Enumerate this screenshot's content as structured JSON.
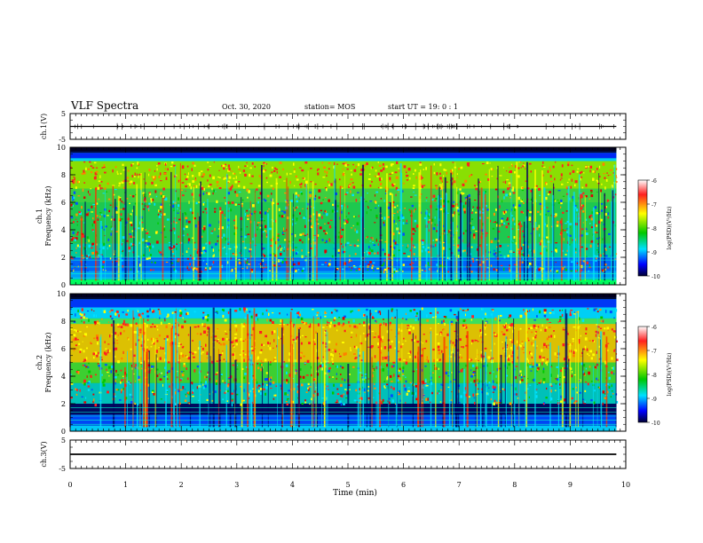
{
  "header": {
    "title": "VLF Spectra",
    "date": "Oct. 30, 2020",
    "station": "station= MOS",
    "start": "start  UT  =   19: 0  : 1"
  },
  "colorbar": {
    "label": "log(PSD)(V²/Hz)",
    "ticks": [
      "-6",
      "-7",
      "-8",
      "-9",
      "-10"
    ],
    "colors": [
      "#ffffff",
      "#ff2020",
      "#ffff00",
      "#00c800",
      "#00e0ff",
      "#0000ff",
      "#000033"
    ]
  },
  "chart_data": [
    {
      "type": "line",
      "panel": "ch1-waveform",
      "ylabel": "ch.1(V)",
      "yticks": [
        "5",
        "-5"
      ],
      "ylim": [
        -5,
        5
      ],
      "series": [
        {
          "x": [
            0,
            9.83
          ],
          "y": [
            0,
            0
          ]
        }
      ]
    },
    {
      "type": "heatmap",
      "panel": "ch1-spectrogram",
      "ylabel": "ch.1\nFrequency (kHz)",
      "yticks": [
        "0",
        "2",
        "4",
        "6",
        "8",
        "10"
      ],
      "ylim": [
        0,
        10
      ],
      "xlim": [
        0,
        9.83
      ],
      "dominant_band_khz": [
        1.0,
        9.0
      ],
      "peak_band_khz": [
        7.0,
        9.0
      ]
    },
    {
      "type": "heatmap",
      "panel": "ch2-spectrogram",
      "ylabel": "ch.2\nFrequency (kHz)",
      "yticks": [
        "0",
        "2",
        "4",
        "6",
        "8",
        "10"
      ],
      "ylim": [
        0,
        10
      ],
      "xlim": [
        0,
        9.83
      ],
      "dominant_band_khz": [
        2.0,
        9.0
      ],
      "peak_band_khz": [
        5.0,
        8.0
      ]
    },
    {
      "type": "line",
      "panel": "ch3-waveform",
      "ylabel": "ch.3(V)",
      "yticks": [
        "5",
        "-5"
      ],
      "ylim": [
        -5,
        5
      ],
      "series": [
        {
          "x": [
            0,
            9.83
          ],
          "y": [
            0,
            0
          ]
        }
      ]
    }
  ],
  "xaxis": {
    "label": "Time (min)",
    "ticks": [
      "0",
      "1",
      "2",
      "3",
      "4",
      "5",
      "6",
      "7",
      "8",
      "9",
      "10"
    ],
    "xlim": [
      0,
      10
    ]
  }
}
